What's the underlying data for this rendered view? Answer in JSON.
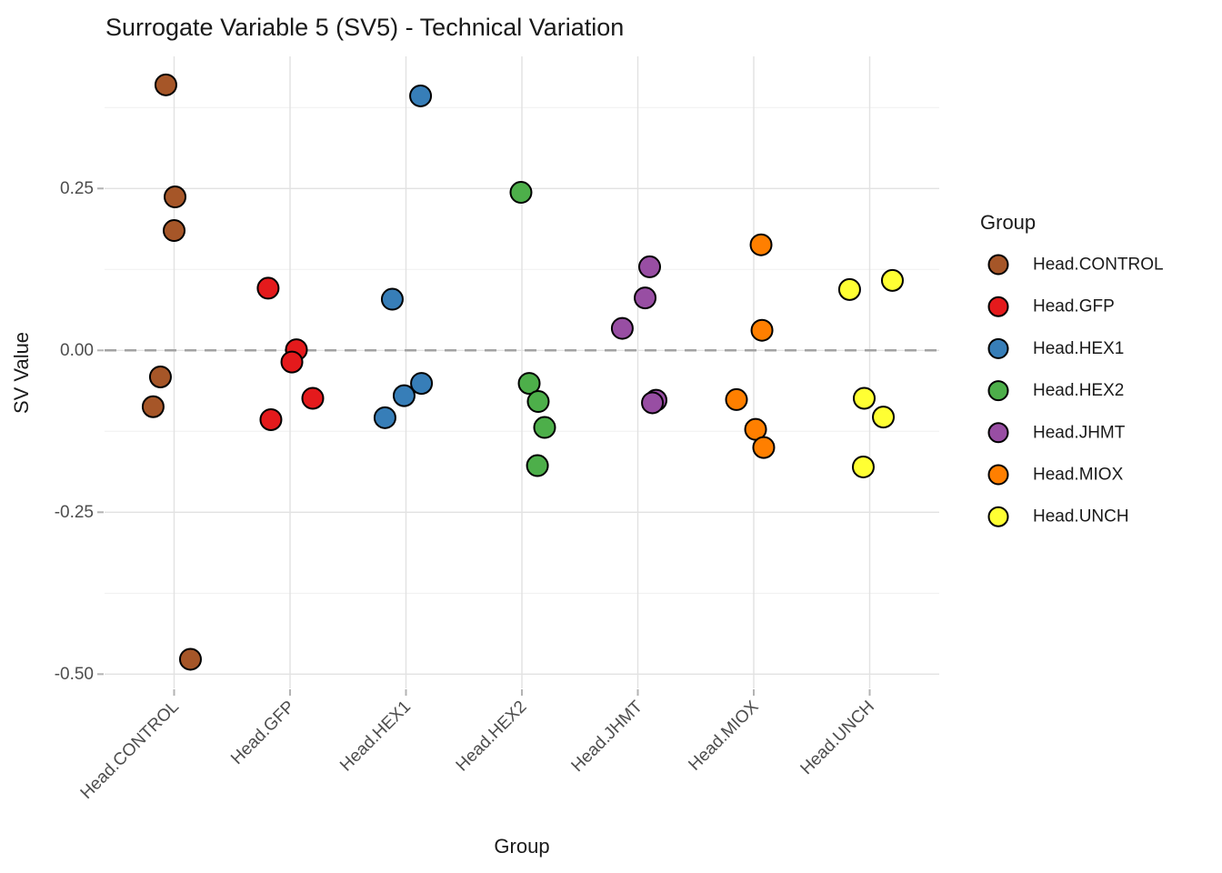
{
  "title": "Surrogate Variable 5 (SV5) - Technical Variation",
  "chart_data": {
    "type": "scatter",
    "title": "Surrogate Variable 5 (SV5) - Technical Variation",
    "xlabel": "Group",
    "ylabel": "SV Value",
    "legend_title": "Group",
    "legend_position": "right",
    "background_color": "#ffffff",
    "grid": {
      "major_color": "#e2e2e2",
      "minor_color": "#efefef",
      "show_minor_y": true
    },
    "zero_line": {
      "value": 0,
      "style": "dashed",
      "color": "#a3a3a3"
    },
    "ylim": [
      -0.522,
      0.454
    ],
    "y_ticks": [
      0.25,
      0.0,
      -0.25,
      -0.5
    ],
    "y_tick_labels": [
      "0.25",
      "0.00",
      "-0.25",
      "-0.50"
    ],
    "y_minor_ticks": [
      0.375,
      0.125,
      -0.125,
      -0.375
    ],
    "categories": [
      "Head.CONTROL",
      "Head.GFP",
      "Head.HEX1",
      "Head.HEX2",
      "Head.JHMT",
      "Head.MIOX",
      "Head.UNCH"
    ],
    "point_style": {
      "radius": 11.5,
      "stroke": "#000000",
      "stroke_width": 2
    },
    "series": [
      {
        "name": "Head.CONTROL",
        "color": "#A65628",
        "points": [
          {
            "value": 0.41,
            "jitter": -0.071
          },
          {
            "value": 0.237,
            "jitter": 0.008
          },
          {
            "value": 0.185,
            "jitter": 0.0
          },
          {
            "value": -0.041,
            "jitter": -0.118
          },
          {
            "value": -0.087,
            "jitter": -0.181
          },
          {
            "value": -0.477,
            "jitter": 0.141
          }
        ]
      },
      {
        "name": "Head.GFP",
        "color": "#E41A1C",
        "points": [
          {
            "value": 0.096,
            "jitter": -0.189
          },
          {
            "value": 0.001,
            "jitter": 0.055
          },
          {
            "value": -0.018,
            "jitter": 0.016
          },
          {
            "value": -0.074,
            "jitter": 0.196
          },
          {
            "value": -0.107,
            "jitter": -0.165
          }
        ]
      },
      {
        "name": "Head.HEX1",
        "color": "#377EB8",
        "points": [
          {
            "value": 0.393,
            "jitter": 0.126
          },
          {
            "value": 0.079,
            "jitter": -0.118
          },
          {
            "value": -0.051,
            "jitter": 0.134
          },
          {
            "value": -0.07,
            "jitter": -0.016
          },
          {
            "value": -0.104,
            "jitter": -0.181
          }
        ]
      },
      {
        "name": "Head.HEX2",
        "color": "#4DAF4A",
        "points": [
          {
            "value": 0.244,
            "jitter": -0.008
          },
          {
            "value": -0.051,
            "jitter": 0.063
          },
          {
            "value": -0.079,
            "jitter": 0.141
          },
          {
            "value": -0.119,
            "jitter": 0.196
          },
          {
            "value": -0.178,
            "jitter": 0.134
          }
        ]
      },
      {
        "name": "Head.JHMT",
        "color": "#984EA3",
        "points": [
          {
            "value": 0.129,
            "jitter": 0.102
          },
          {
            "value": 0.081,
            "jitter": 0.063
          },
          {
            "value": 0.034,
            "jitter": -0.134
          },
          {
            "value": -0.077,
            "jitter": 0.157
          },
          {
            "value": -0.081,
            "jitter": 0.126
          }
        ]
      },
      {
        "name": "Head.MIOX",
        "color": "#FF7F00",
        "points": [
          {
            "value": 0.163,
            "jitter": 0.063
          },
          {
            "value": 0.031,
            "jitter": 0.071
          },
          {
            "value": -0.076,
            "jitter": -0.149
          },
          {
            "value": -0.122,
            "jitter": 0.016
          },
          {
            "value": -0.15,
            "jitter": 0.086
          }
        ]
      },
      {
        "name": "Head.UNCH",
        "color": "#FFFF33",
        "points": [
          {
            "value": 0.094,
            "jitter": -0.173
          },
          {
            "value": 0.108,
            "jitter": 0.196
          },
          {
            "value": -0.074,
            "jitter": -0.047
          },
          {
            "value": -0.103,
            "jitter": 0.118
          },
          {
            "value": -0.18,
            "jitter": -0.055
          }
        ]
      }
    ]
  }
}
